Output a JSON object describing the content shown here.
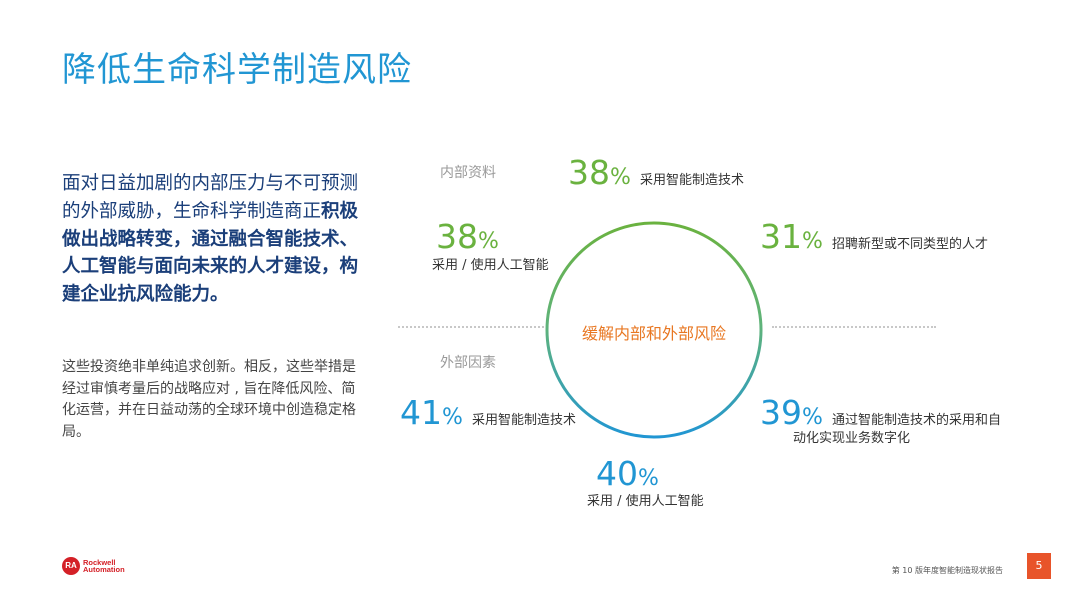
{
  "title": "降低生命科学制造风险",
  "lead": {
    "line1": "面对日益加剧的内部压力与不可预测的外部威胁，生命科学制造商正",
    "line2": "积极做出战略转变，通过融合智能技术、人工智能与面向未来的人才建设，构建企业抗风险能力。"
  },
  "body_text": "这些投资绝非单纯追求创新。相反，这些举措是经过审慎考量后的战略应对 , 旨在降低风险、简化运营，并在日益动荡的全球环境中创造稳定格局。",
  "diagram": {
    "center_label": "缓解内部和外部风险",
    "internal_label": "内部资料",
    "external_label": "外部因素",
    "percent_sign": "%",
    "internal_stats": [
      {
        "value": "38",
        "label": "采用智能制造技术"
      },
      {
        "value": "38",
        "label": "采用 / 使用人工智能"
      },
      {
        "value": "31",
        "label": "招聘新型或不同类型的人才"
      }
    ],
    "external_stats": [
      {
        "value": "41",
        "label": "采用智能制造技术"
      },
      {
        "value": "39",
        "label_line1": "通过智能制造技术的采用和自",
        "label_line2": "动化实现业务数字化"
      },
      {
        "value": "40",
        "label": "采用 / 使用人工智能"
      }
    ],
    "colors": {
      "internal": "#6ab23f",
      "external": "#2196d3",
      "center": "#e87722"
    }
  },
  "footer": {
    "logo_mark": "RA",
    "logo_line1": "Rockwell",
    "logo_line2": "Automation",
    "report_name": "第 10 版年度智能制造现状报告",
    "page_number": "5"
  }
}
